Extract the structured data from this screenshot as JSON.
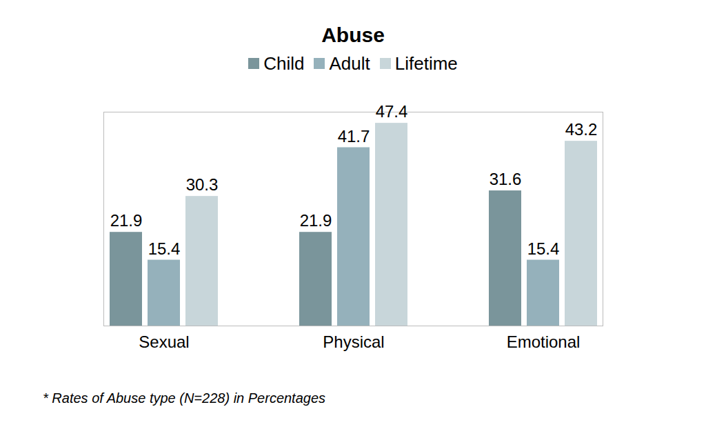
{
  "chart_data": {
    "type": "bar",
    "title": "Abuse",
    "categories": [
      "Sexual",
      "Physical",
      "Emotional"
    ],
    "series": [
      {
        "name": "Child",
        "color": "#7a959b",
        "values": [
          21.9,
          21.9,
          31.6
        ]
      },
      {
        "name": "Adult",
        "color": "#95b1bb",
        "values": [
          15.4,
          41.7,
          15.4
        ]
      },
      {
        "name": "Lifetime",
        "color": "#c8d6da",
        "values": [
          30.3,
          47.4,
          43.2
        ]
      }
    ],
    "ylim": [
      0,
      50
    ],
    "yticks": [],
    "data_labels": true,
    "tick_labels": "x",
    "legend": "top",
    "caption": "* Rates of Abuse type (N=228) in Percentages"
  }
}
